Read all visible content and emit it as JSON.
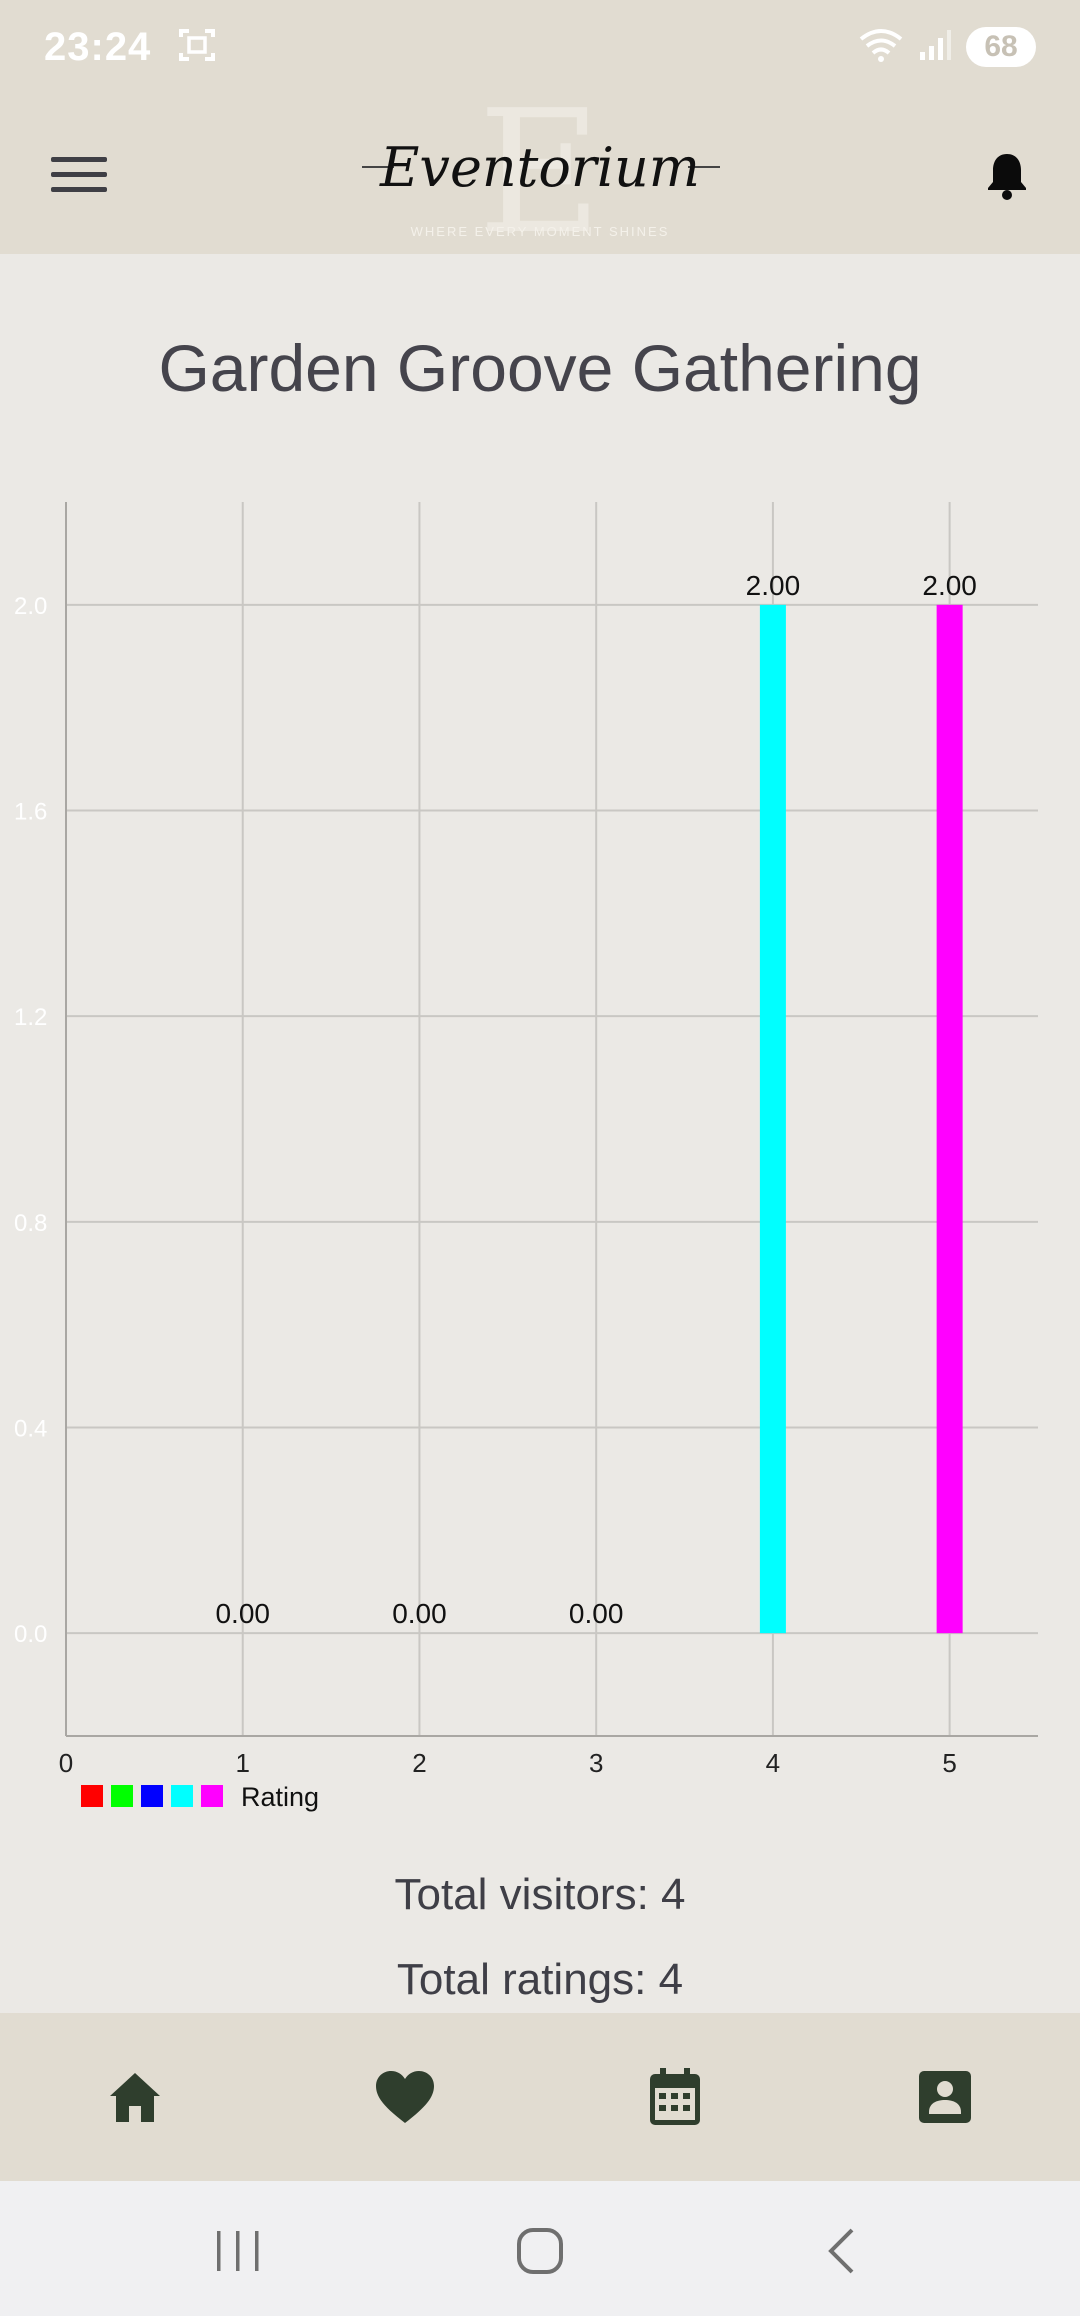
{
  "status_bar": {
    "time": "23:24",
    "battery": "68",
    "icons": [
      "screenshot-icon",
      "wifi-icon",
      "signal-icon",
      "battery-icon"
    ]
  },
  "app_bar": {
    "logo_name": "Eventorium",
    "logo_letter": "E",
    "logo_tagline": "WHERE EVERY MOMENT SHINES",
    "icons": [
      "menu-icon",
      "bell-icon"
    ]
  },
  "page": {
    "title": "Garden Groove Gathering",
    "total_visitors": "Total visitors: 4",
    "total_ratings": "Total ratings: 4"
  },
  "chart_data": {
    "type": "bar",
    "title": "",
    "x": [
      1,
      2,
      3,
      4,
      5
    ],
    "values": [
      0,
      0,
      0,
      2,
      2
    ],
    "value_labels": [
      "0.00",
      "0.00",
      "0.00",
      "2.00",
      "2.00"
    ],
    "colors": [
      "#ff0000",
      "#00ff00",
      "#0000ff",
      "#00ffff",
      "#ff00ff"
    ],
    "xlim": [
      0,
      5.5
    ],
    "ylim": [
      -0.2,
      2.2
    ],
    "x_ticks": [
      "0",
      "1",
      "2",
      "3",
      "4",
      "5"
    ],
    "y_ticks": [
      "0.0",
      "0.4",
      "0.8",
      "1.2",
      "1.6",
      "2.0"
    ],
    "legend": {
      "label": "Rating",
      "placement": "bottom-left"
    },
    "grid": true
  },
  "bottom_nav": {
    "items": [
      "home-icon",
      "heart-icon",
      "calendar-icon",
      "profile-icon"
    ]
  },
  "system_nav": {
    "items": [
      "recents-icon",
      "home-circle-icon",
      "back-icon"
    ]
  }
}
